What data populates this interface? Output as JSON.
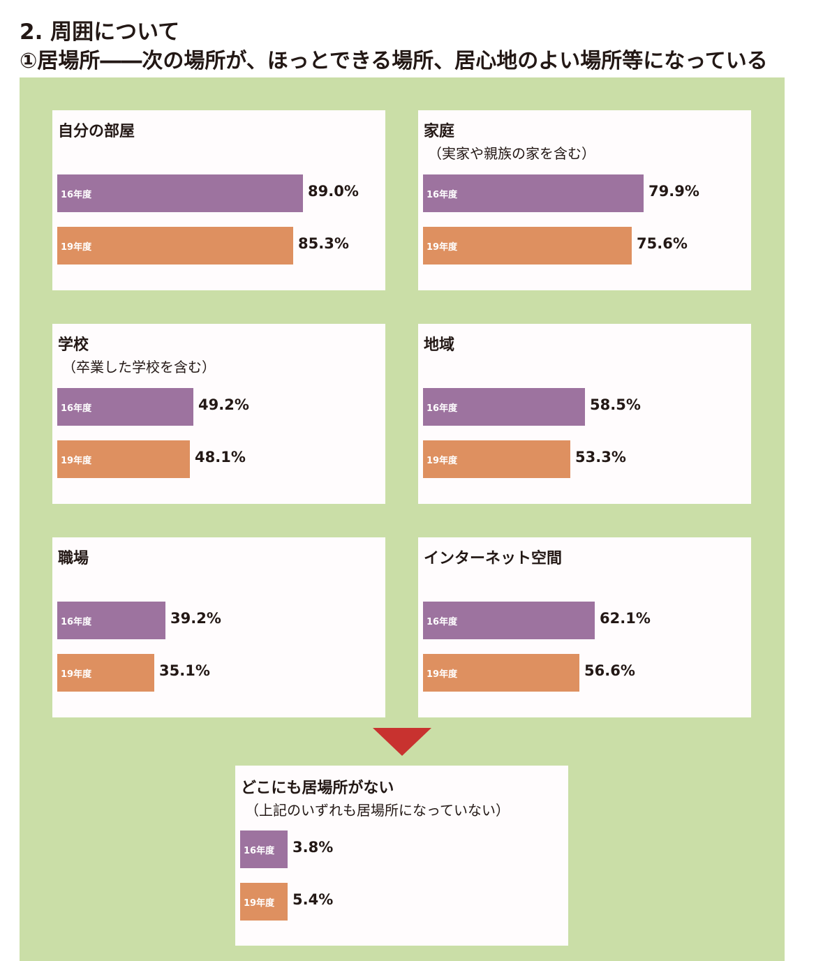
{
  "heading": "2. 周囲について",
  "subheading": "①居場所――次の場所が、ほっとできる場所、居心地のよい場所等になっている",
  "colors": {
    "panel_bg": "#cadea7",
    "card_bg": "#fffcfd",
    "bar_16": "#9d739f",
    "bar_19": "#de9060",
    "arrow": "#c8322f"
  },
  "chart_data": {
    "type": "bar",
    "orientation": "horizontal",
    "xlim": [
      0,
      100
    ],
    "unit": "%",
    "series_labels": [
      "16年度",
      "19年度"
    ],
    "panels": [
      {
        "title": "自分の部屋",
        "subtitle": "",
        "values": [
          89.0,
          85.3
        ],
        "value_labels": [
          "89.0%",
          "85.3%"
        ]
      },
      {
        "title": "家庭",
        "subtitle": "（実家や親族の家を含む）",
        "values": [
          79.9,
          75.6
        ],
        "value_labels": [
          "79.9%",
          "75.6%"
        ]
      },
      {
        "title": "学校",
        "subtitle": "（卒業した学校を含む）",
        "values": [
          49.2,
          48.1
        ],
        "value_labels": [
          "49.2%",
          "48.1%"
        ]
      },
      {
        "title": "地域",
        "subtitle": "",
        "values": [
          58.5,
          53.3
        ],
        "value_labels": [
          "58.5%",
          "53.3%"
        ]
      },
      {
        "title": "職場",
        "subtitle": "",
        "values": [
          39.2,
          35.1
        ],
        "value_labels": [
          "39.2%",
          "35.1%"
        ]
      },
      {
        "title": "インターネット空間",
        "subtitle": "",
        "values": [
          62.1,
          56.6
        ],
        "value_labels": [
          "62.1%",
          "56.6%"
        ]
      },
      {
        "title": "どこにも居場所がない",
        "subtitle": "（上記のいずれも居場所になっていない）",
        "values": [
          3.8,
          5.4
        ],
        "value_labels": [
          "3.8%",
          "5.4%"
        ]
      }
    ]
  }
}
